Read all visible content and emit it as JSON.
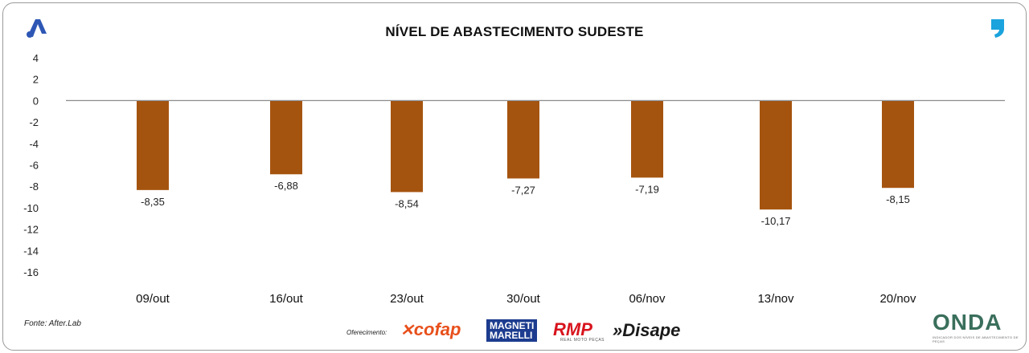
{
  "header": {
    "title": "NÍVEL DE ABASTECIMENTO SUDESTE",
    "logo_icon": "afterlab-a-logo-icon",
    "quote_icon": "quote-mark-icon"
  },
  "chart_data": {
    "type": "bar",
    "title": "NÍVEL DE ABASTECIMENTO SUDESTE",
    "xlabel": "",
    "ylabel": "",
    "categories": [
      "09/out",
      "16/out",
      "23/out",
      "30/out",
      "06/nov",
      "13/nov",
      "20/nov"
    ],
    "values": [
      -8.35,
      -6.88,
      -8.54,
      -7.27,
      -7.19,
      -10.17,
      -8.15
    ],
    "value_labels": [
      "-8,35",
      "-6,88",
      "-8,54",
      "-7,27",
      "-7,19",
      "-10,17",
      "-8,15"
    ],
    "ylim": [
      -16,
      4
    ],
    "yticks": [
      4,
      2,
      0,
      -2,
      -4,
      -6,
      -8,
      -10,
      -12,
      -14,
      -16
    ],
    "grid": false,
    "bar_color": "#a5540f",
    "axis_color": "#8a8a8a"
  },
  "footer": {
    "source": "Fonte: After.Lab",
    "sponsor_label": "Oferecimento:",
    "sponsors": {
      "cofap": "cofap",
      "magneti_line1": "MAGNETI",
      "magneti_line2": "MARELLI",
      "rmp": "RMP",
      "rmp_sub": "REAL MOTO PEÇAS",
      "disape": "»Disape"
    },
    "onda": "ONDA",
    "onda_sub": "INDICADOR DOS NÍVEIS DE ABASTECIMENTO DE PEÇAS"
  }
}
